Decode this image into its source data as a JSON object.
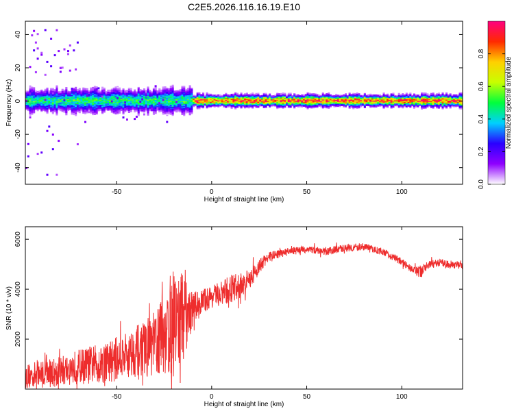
{
  "figure_title": "C2E5.2026.116.16.19.E10",
  "chart_data": [
    {
      "type": "heatmap",
      "xlabel": "Height of straight line (km)",
      "ylabel": "Frequency (Hz)",
      "xlim": [
        -98,
        132
      ],
      "ylim": [
        -50,
        48
      ],
      "x_ticks": [
        -50,
        0,
        50,
        100
      ],
      "y_ticks": [
        -40,
        -20,
        0,
        20,
        40
      ],
      "colorbar": {
        "label": "Normalized spectral amplitude",
        "range": [
          0,
          1
        ],
        "ticks": [
          "0.0",
          "0.2",
          "0.4",
          "0.6",
          "0.8"
        ],
        "tick_values": [
          0,
          0.2,
          0.4,
          0.6,
          0.8
        ],
        "colormap": [
          "#ffffff",
          "#8f00ff",
          "#2a00ff",
          "#00d0ff",
          "#00ff3c",
          "#c8ff00",
          "#ffd000",
          "#ff2a00",
          "#ff0080"
        ]
      },
      "description_bands": [
        {
          "x_range": [
            -98,
            -10
          ],
          "center_freq": 0,
          "half_width_hz": 6,
          "peak_amplitude": 0.5
        },
        {
          "x_range": [
            -10,
            132
          ],
          "center_freq": 0,
          "half_width_hz": 3,
          "peak_amplitude": 0.9
        }
      ]
    },
    {
      "type": "line",
      "xlabel": "Height of straight line (km)",
      "ylabel": "SNR (10 * v/v)",
      "xlim": [
        -98,
        132
      ],
      "ylim": [
        0,
        6500
      ],
      "x_ticks": [
        -50,
        0,
        50,
        100
      ],
      "y_ticks": [
        2000,
        4000,
        6000
      ],
      "series": [
        {
          "name": "SNR",
          "color": "#ee2d2d",
          "x": [
            -98,
            -90,
            -80,
            -70,
            -60,
            -50,
            -40,
            -30,
            -25,
            -20,
            -15,
            -10,
            -5,
            0,
            5,
            10,
            15,
            20,
            25,
            30,
            40,
            50,
            60,
            70,
            80,
            90,
            95,
            100,
            105,
            110,
            115,
            120,
            125,
            132
          ],
          "y": [
            500,
            600,
            700,
            900,
            1000,
            1200,
            1500,
            1800,
            2200,
            2600,
            2900,
            3200,
            3500,
            3700,
            3800,
            4000,
            4100,
            4400,
            4900,
            5300,
            5500,
            5600,
            5500,
            5650,
            5700,
            5500,
            5300,
            5100,
            4800,
            4700,
            5000,
            5050,
            5000,
            4950
          ],
          "noise_scale": [
            500,
            550,
            600,
            700,
            800,
            900,
            1000,
            1300,
            1700,
            2300,
            1800,
            700,
            500,
            450,
            500,
            600,
            550,
            400,
            300,
            200,
            150,
            150,
            150,
            150,
            150,
            150,
            150,
            150,
            150,
            250,
            150,
            150,
            150,
            150
          ]
        }
      ]
    }
  ]
}
